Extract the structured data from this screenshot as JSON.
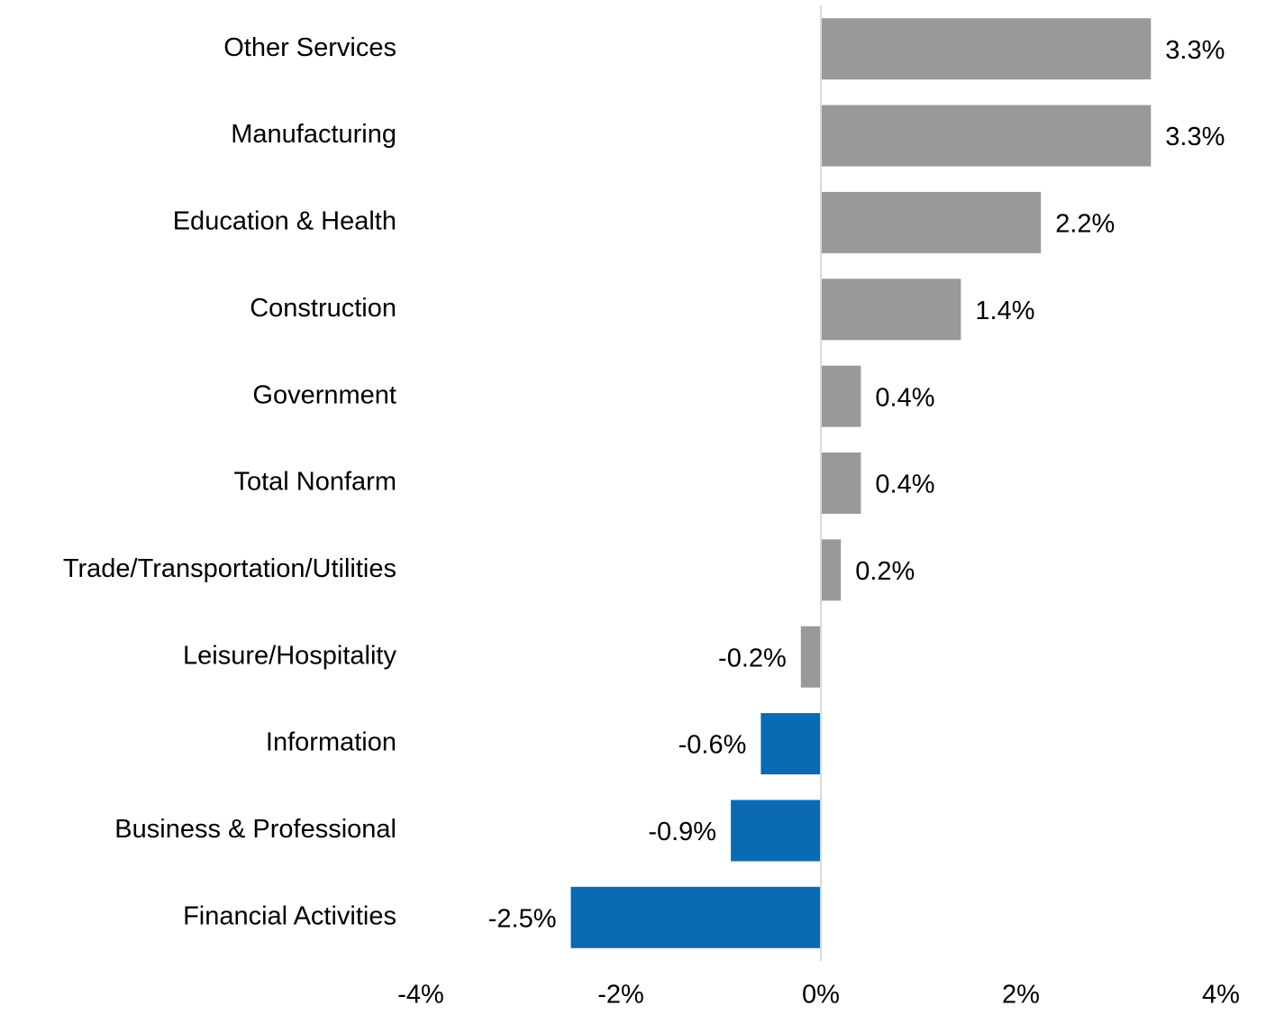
{
  "chart_data": {
    "type": "bar",
    "orientation": "horizontal",
    "categories": [
      "Other Services",
      "Manufacturing",
      "Education & Health",
      "Construction",
      "Government",
      "Total Nonfarm",
      "Trade/Transportation/Utilities",
      "Leisure/Hospitality",
      "Information",
      "Business & Professional",
      "Financial Activities"
    ],
    "values": [
      3.3,
      3.3,
      2.2,
      1.4,
      0.4,
      0.4,
      0.2,
      -0.2,
      -0.6,
      -0.9,
      -2.5
    ],
    "value_labels": [
      "3.3%",
      "3.3%",
      "2.2%",
      "1.4%",
      "0.4%",
      "0.4%",
      "0.2%",
      "-0.2%",
      "-0.6%",
      "-0.9%",
      "-2.5%"
    ],
    "colors": [
      "#999999",
      "#999999",
      "#999999",
      "#999999",
      "#999999",
      "#999999",
      "#999999",
      "#999999",
      "#0a6ab4",
      "#0a6ab4",
      "#0a6ab4"
    ],
    "xlim": [
      -4,
      4
    ],
    "xticks": [
      {
        "value": -4,
        "label": "-4%"
      },
      {
        "value": -2,
        "label": "-2%"
      },
      {
        "value": 0,
        "label": "0%"
      },
      {
        "value": 2,
        "label": "2%"
      },
      {
        "value": 4,
        "label": "4%"
      }
    ],
    "grid": false
  }
}
